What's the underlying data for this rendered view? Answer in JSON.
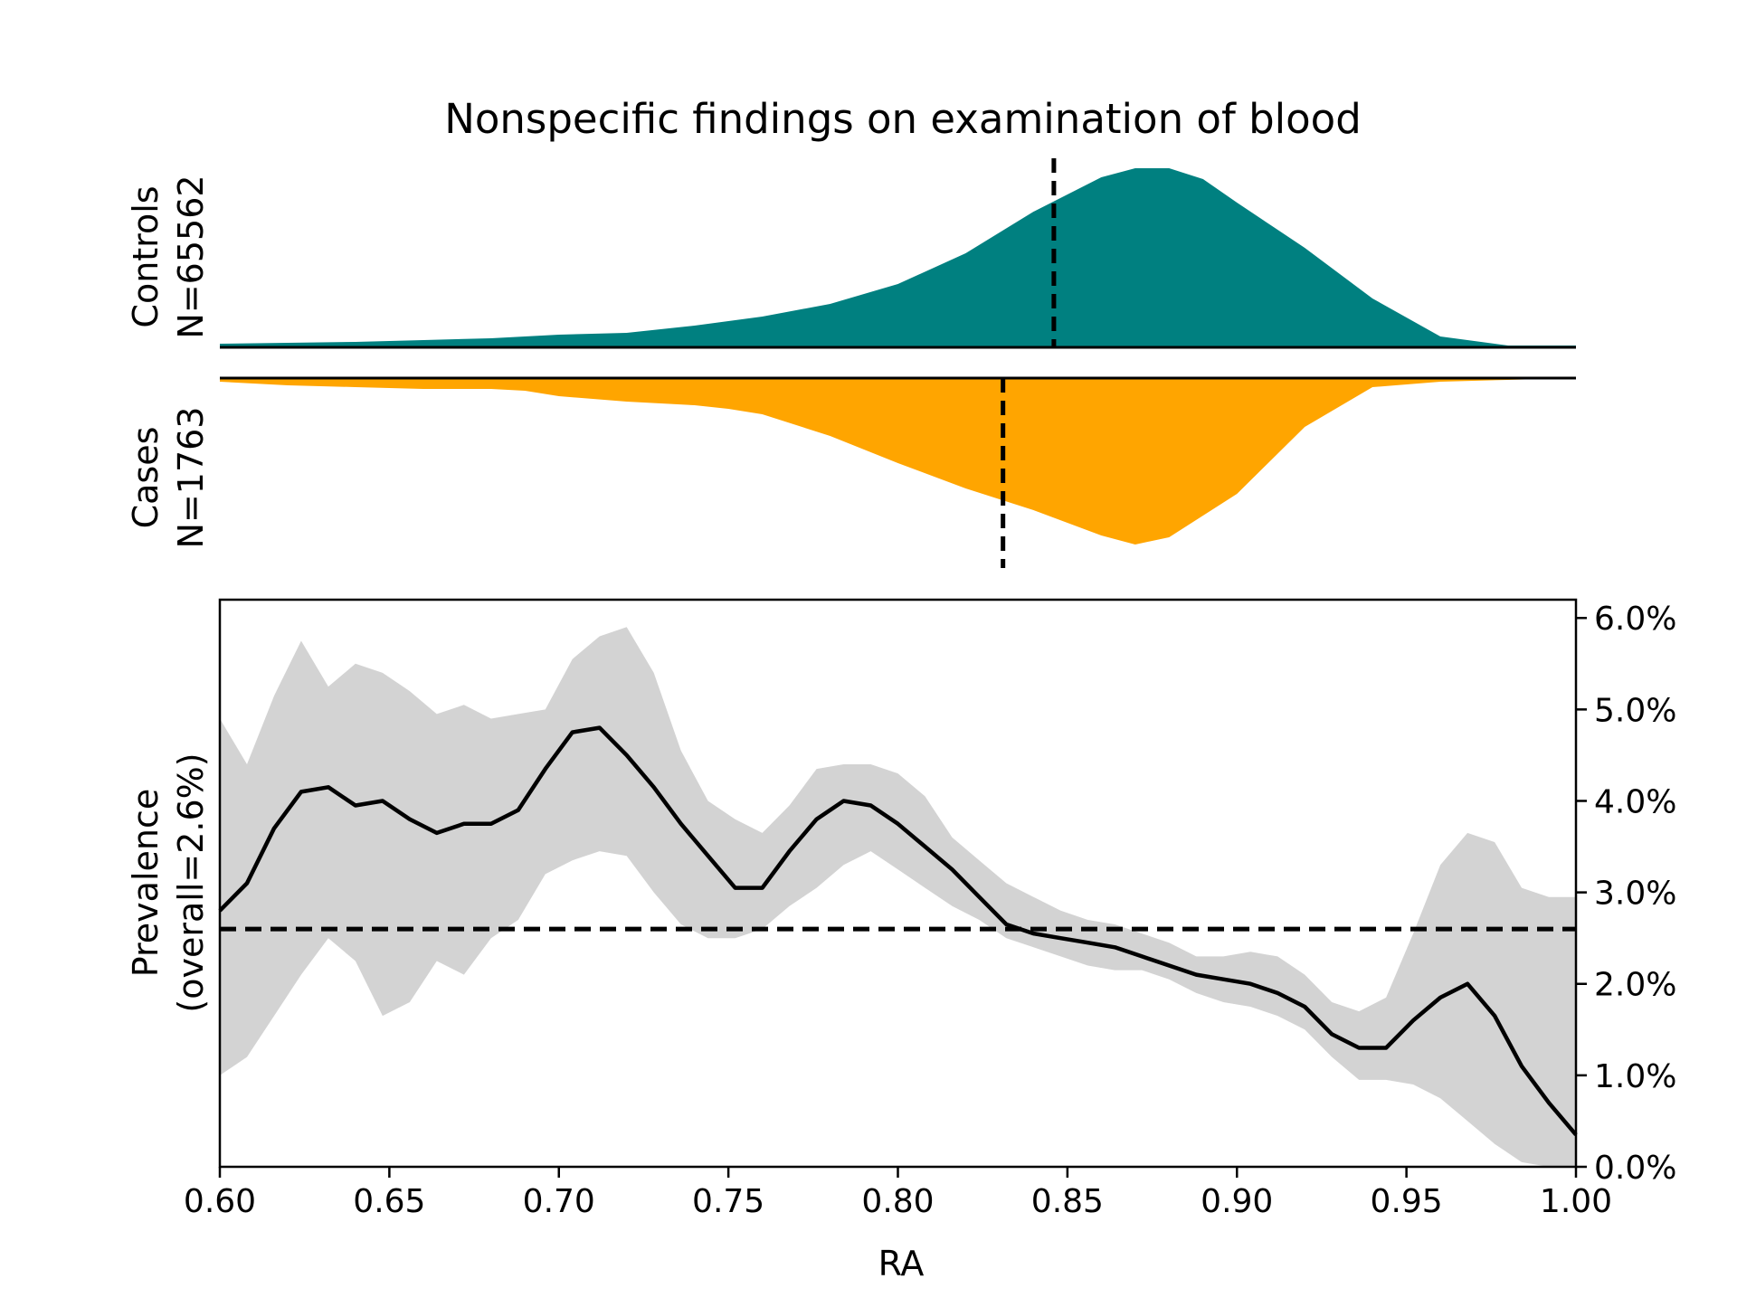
{
  "chart_data": [
    {
      "type": "area",
      "panel": "distributions",
      "title": "Nonspecific findings on examination of blood",
      "colors": {
        "controls": "#008080",
        "cases": "#FFA500"
      },
      "series": [
        {
          "name_lines": [
            "Controls",
            "N=65562"
          ],
          "mean_marker": 0.846,
          "x": [
            0.6,
            0.62,
            0.64,
            0.66,
            0.68,
            0.7,
            0.72,
            0.74,
            0.76,
            0.78,
            0.8,
            0.82,
            0.84,
            0.86,
            0.87,
            0.88,
            0.89,
            0.9,
            0.92,
            0.94,
            0.96,
            0.98,
            1.0
          ],
          "density": [
            0.02,
            0.025,
            0.03,
            0.04,
            0.05,
            0.07,
            0.08,
            0.12,
            0.17,
            0.24,
            0.35,
            0.52,
            0.75,
            0.94,
            0.99,
            0.99,
            0.93,
            0.8,
            0.55,
            0.27,
            0.06,
            0.01,
            0.01
          ]
        },
        {
          "name_lines": [
            "Cases",
            "N=1763"
          ],
          "mean_marker": 0.831,
          "x": [
            0.6,
            0.62,
            0.64,
            0.66,
            0.68,
            0.69,
            0.7,
            0.72,
            0.74,
            0.75,
            0.76,
            0.78,
            0.8,
            0.82,
            0.84,
            0.86,
            0.87,
            0.88,
            0.9,
            0.92,
            0.94,
            0.96,
            0.98,
            1.0
          ],
          "density": [
            0.02,
            0.04,
            0.05,
            0.06,
            0.06,
            0.07,
            0.1,
            0.13,
            0.15,
            0.17,
            0.2,
            0.32,
            0.47,
            0.61,
            0.73,
            0.87,
            0.92,
            0.88,
            0.64,
            0.27,
            0.05,
            0.02,
            0.01,
            0.0
          ]
        }
      ]
    },
    {
      "type": "line",
      "panel": "prevalence",
      "xlabel": "RA",
      "ylabel_lines": [
        "Prevalence",
        "(overall=2.6%)"
      ],
      "xlim": [
        0.6,
        1.0
      ],
      "ylim": [
        0.0,
        6.2
      ],
      "x_ticks": [
        "0.60",
        "0.65",
        "0.70",
        "0.75",
        "0.80",
        "0.85",
        "0.90",
        "0.95",
        "1.00"
      ],
      "y_ticks": [
        "0.0%",
        "1.0%",
        "2.0%",
        "3.0%",
        "4.0%",
        "5.0%",
        "6.0%"
      ],
      "reference_line": 2.6,
      "x": [
        0.6,
        0.608,
        0.616,
        0.624,
        0.632,
        0.64,
        0.648,
        0.656,
        0.664,
        0.672,
        0.68,
        0.688,
        0.696,
        0.704,
        0.712,
        0.72,
        0.728,
        0.736,
        0.744,
        0.752,
        0.76,
        0.768,
        0.776,
        0.784,
        0.792,
        0.8,
        0.808,
        0.816,
        0.824,
        0.832,
        0.84,
        0.848,
        0.856,
        0.864,
        0.872,
        0.88,
        0.888,
        0.896,
        0.904,
        0.912,
        0.92,
        0.928,
        0.936,
        0.944,
        0.952,
        0.96,
        0.968,
        0.976,
        0.984,
        0.992,
        1.0
      ],
      "values": [
        2.8,
        3.1,
        3.7,
        4.1,
        4.15,
        3.95,
        4.0,
        3.8,
        3.65,
        3.75,
        3.75,
        3.9,
        4.35,
        4.75,
        4.8,
        4.5,
        4.15,
        3.75,
        3.4,
        3.05,
        3.05,
        3.45,
        3.8,
        4.0,
        3.95,
        3.75,
        3.5,
        3.25,
        2.95,
        2.65,
        2.55,
        2.5,
        2.45,
        2.4,
        2.3,
        2.2,
        2.1,
        2.05,
        2.0,
        1.9,
        1.75,
        1.45,
        1.3,
        1.3,
        1.6,
        1.85,
        2.0,
        1.65,
        1.1,
        0.7,
        0.35
      ],
      "ci_upper": [
        4.9,
        4.4,
        5.15,
        5.75,
        5.25,
        5.5,
        5.4,
        5.2,
        4.95,
        5.05,
        4.9,
        4.95,
        5.0,
        5.55,
        5.8,
        5.9,
        5.4,
        4.55,
        4.0,
        3.8,
        3.65,
        3.95,
        4.35,
        4.4,
        4.4,
        4.3,
        4.05,
        3.6,
        3.35,
        3.1,
        2.95,
        2.8,
        2.7,
        2.65,
        2.55,
        2.45,
        2.3,
        2.3,
        2.35,
        2.3,
        2.1,
        1.8,
        1.7,
        1.85,
        2.55,
        3.3,
        3.65,
        3.55,
        3.05,
        2.95,
        2.95
      ],
      "ci_lower": [
        1.0,
        1.2,
        1.65,
        2.1,
        2.5,
        2.25,
        1.65,
        1.8,
        2.25,
        2.1,
        2.5,
        2.7,
        3.2,
        3.35,
        3.45,
        3.4,
        3.0,
        2.65,
        2.5,
        2.5,
        2.6,
        2.85,
        3.05,
        3.3,
        3.45,
        3.25,
        3.05,
        2.85,
        2.7,
        2.5,
        2.4,
        2.3,
        2.2,
        2.15,
        2.15,
        2.05,
        1.9,
        1.8,
        1.75,
        1.65,
        1.5,
        1.2,
        0.95,
        0.95,
        0.9,
        0.75,
        0.5,
        0.25,
        0.05,
        0.0,
        0.0
      ]
    }
  ]
}
